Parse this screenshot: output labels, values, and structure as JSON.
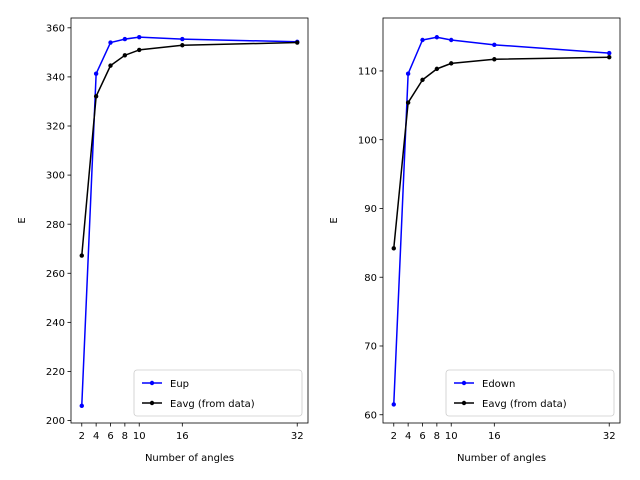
{
  "chart_data": [
    {
      "type": "line",
      "xlabel": "Number of angles",
      "ylabel": "E",
      "xlim": [
        0.5,
        33.5
      ],
      "ylim": [
        199,
        364
      ],
      "xticks": [
        2,
        4,
        6,
        8,
        10,
        16,
        32
      ],
      "yticks": [
        200,
        220,
        240,
        260,
        280,
        300,
        320,
        340,
        360
      ],
      "legend": "lower-right",
      "grid": false,
      "series": [
        {
          "name": "Eup",
          "color": "#0000ff",
          "x": [
            2,
            4,
            6,
            8,
            10,
            16,
            32
          ],
          "values": [
            206.0,
            341.3,
            354.0,
            355.4,
            356.2,
            355.4,
            354.3
          ]
        },
        {
          "name": "Eavg (from data)",
          "color": "#000000",
          "x": [
            2,
            4,
            6,
            8,
            10,
            16,
            32
          ],
          "values": [
            267.2,
            332.1,
            344.6,
            348.8,
            351.0,
            352.9,
            354.0
          ]
        }
      ]
    },
    {
      "type": "line",
      "xlabel": "Number of angles",
      "ylabel": "E",
      "xlim": [
        0.5,
        33.5
      ],
      "ylim": [
        58.8,
        117.7
      ],
      "xticks": [
        2,
        4,
        6,
        8,
        10,
        16,
        32
      ],
      "yticks": [
        60,
        70,
        80,
        90,
        100,
        110
      ],
      "legend": "lower-right",
      "grid": false,
      "series": [
        {
          "name": "Edown",
          "color": "#0000ff",
          "x": [
            2,
            4,
            6,
            8,
            10,
            16,
            32
          ],
          "values": [
            61.5,
            109.6,
            114.5,
            114.9,
            114.5,
            113.8,
            112.6
          ]
        },
        {
          "name": "Eavg (from data)",
          "color": "#000000",
          "x": [
            2,
            4,
            6,
            8,
            10,
            16,
            32
          ],
          "values": [
            84.2,
            105.4,
            108.7,
            110.3,
            111.1,
            111.7,
            112.0
          ]
        }
      ]
    }
  ]
}
